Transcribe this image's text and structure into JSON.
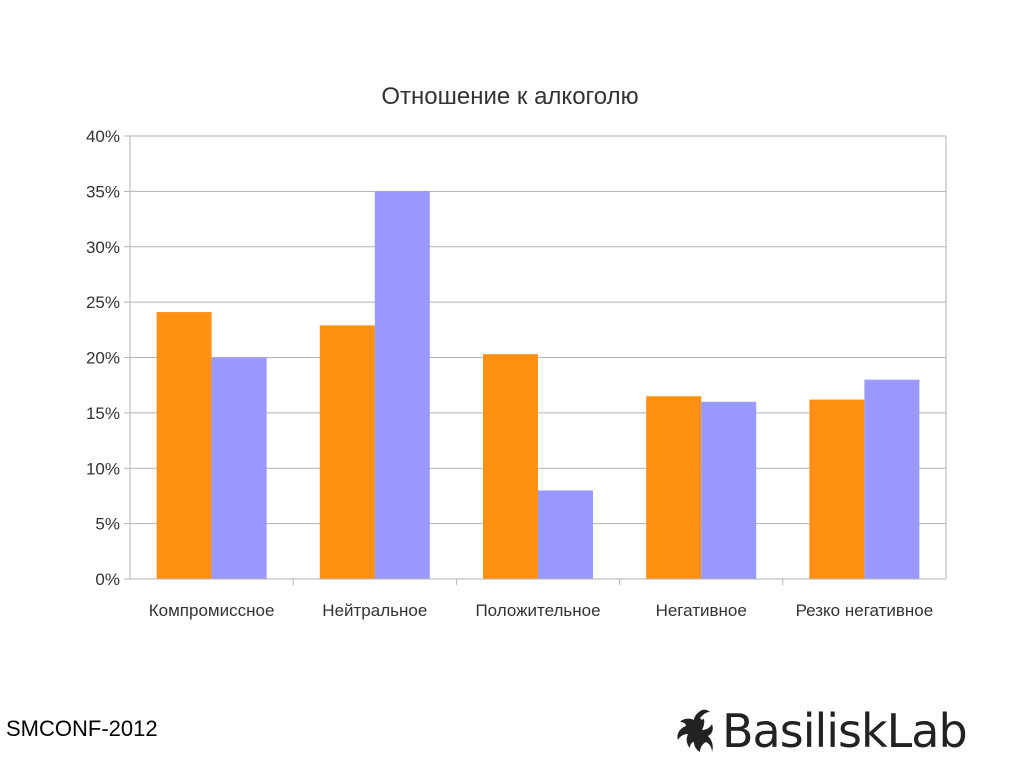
{
  "footer": {
    "conference": "SMCONF-2012",
    "logo_text": "BasiliskLab"
  },
  "chart_data": {
    "type": "bar",
    "title": "Отношение к алкоголю",
    "xlabel": "",
    "ylabel": "",
    "ylim": [
      0,
      40
    ],
    "ytick_step": 5,
    "ytick_format": "percent",
    "grid": true,
    "legend": "none",
    "categories": [
      "Компромиссное",
      "Нейтральное",
      "Положительное",
      "Негативное",
      "Резко негативное"
    ],
    "series": [
      {
        "values": [
          24.1,
          22.9,
          20.3,
          16.5,
          16.2
        ],
        "color": "#ff9012"
      },
      {
        "values": [
          20.0,
          35.0,
          8.0,
          16.0,
          18.0
        ],
        "color": "#9999ff"
      }
    ]
  }
}
